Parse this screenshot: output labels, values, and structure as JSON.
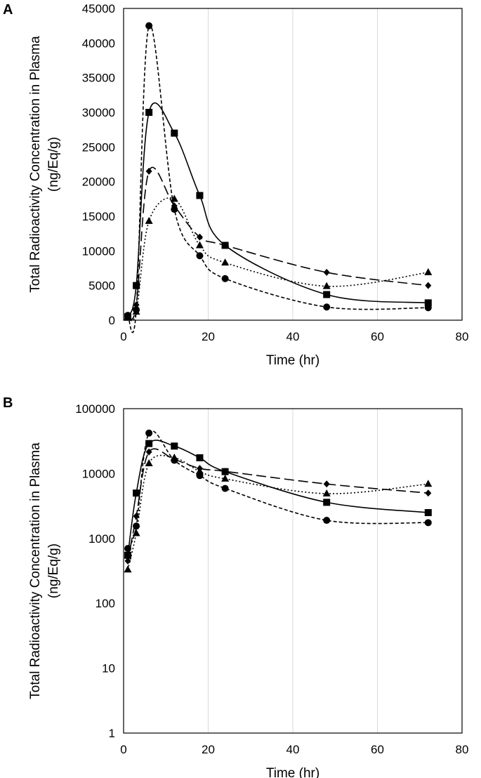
{
  "chart_data": [
    {
      "type": "line",
      "panel": "A",
      "scale": "linear",
      "xlabel": "Time (hr)",
      "ylabel": [
        "Total Radioactivity Concentration in Plasma",
        "(ng/Eq/g)"
      ],
      "xlim": [
        0,
        80
      ],
      "ylim": [
        0,
        45000
      ],
      "xticks": [
        0,
        20,
        40,
        60,
        80
      ],
      "yticks": [
        0,
        5000,
        10000,
        15000,
        20000,
        25000,
        30000,
        35000,
        40000,
        45000
      ],
      "grid": "vertical",
      "series": [
        {
          "name": "square",
          "marker": "square",
          "dash": "solid",
          "x": [
            1,
            3,
            6,
            12,
            18,
            24,
            48,
            72
          ],
          "y": [
            500,
            5000,
            30000,
            27000,
            18000,
            10800,
            3700,
            2500
          ]
        },
        {
          "name": "circle",
          "marker": "circle",
          "dash": "short-dash",
          "x": [
            1,
            3,
            6,
            12,
            18,
            24,
            48,
            72
          ],
          "y": [
            700,
            1500,
            42500,
            16000,
            9300,
            6000,
            1900,
            1800
          ]
        },
        {
          "name": "diamond",
          "marker": "diamond",
          "dash": "long-dash",
          "x": [
            1,
            3,
            6,
            12,
            18,
            24,
            48,
            72
          ],
          "y": [
            450,
            2200,
            21500,
            16500,
            12000,
            10800,
            6900,
            5000
          ]
        },
        {
          "name": "triangle",
          "marker": "triangle",
          "dash": "dotted",
          "x": [
            1,
            3,
            6,
            12,
            18,
            24,
            48,
            72
          ],
          "y": [
            330,
            1200,
            14300,
            17500,
            10800,
            8300,
            4900,
            6900
          ]
        }
      ]
    },
    {
      "type": "line",
      "panel": "B",
      "scale": "log",
      "xlabel": "Time (hr)",
      "ylabel": [
        "Total Radioactivity Concentration in Plasma",
        "(ng/Eq/g)"
      ],
      "xlim": [
        0,
        80
      ],
      "ylim": [
        1,
        100000
      ],
      "xticks": [
        0,
        20,
        40,
        60,
        80
      ],
      "yticks": [
        1,
        10,
        100,
        1000,
        10000,
        100000
      ],
      "grid": "vertical",
      "series": [
        {
          "name": "square",
          "marker": "square",
          "dash": "solid",
          "x": [
            1,
            3,
            6,
            12,
            18,
            24,
            48,
            72
          ],
          "y": [
            550,
            5000,
            29000,
            26500,
            17500,
            10700,
            3600,
            2500
          ]
        },
        {
          "name": "circle",
          "marker": "circle",
          "dash": "short-dash",
          "x": [
            1,
            3,
            6,
            12,
            18,
            24,
            48,
            72
          ],
          "y": [
            700,
            1550,
            42000,
            16000,
            9300,
            5900,
            1900,
            1750
          ]
        },
        {
          "name": "diamond",
          "marker": "diamond",
          "dash": "long-dash",
          "x": [
            1,
            3,
            6,
            12,
            18,
            24,
            48,
            72
          ],
          "y": [
            450,
            2200,
            21500,
            16500,
            12000,
            10800,
            6900,
            5000
          ]
        },
        {
          "name": "triangle",
          "marker": "triangle",
          "dash": "dotted",
          "x": [
            1,
            3,
            6,
            12,
            18,
            24,
            48,
            72
          ],
          "y": [
            330,
            1200,
            14300,
            17500,
            10800,
            8300,
            4900,
            6900
          ]
        }
      ]
    }
  ]
}
